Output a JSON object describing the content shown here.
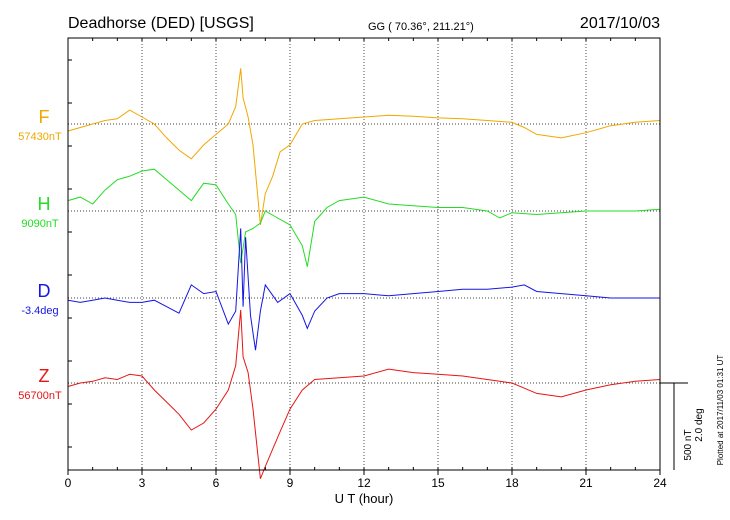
{
  "header": {
    "station": "Deadhorse (DED)  [USGS]",
    "coords": "GG ( 70.36°, 211.21°)",
    "date": "2017/10/03"
  },
  "side": {
    "plotted": "Plotted at 2017/11/03 01:31  UT",
    "scale_nt": "500 nT",
    "scale_deg": "2.0 deg"
  },
  "chart_data": {
    "type": "line",
    "xlabel": "U T (hour)",
    "xlim": [
      0,
      24
    ],
    "xticks": [
      "0",
      "3",
      "6",
      "9",
      "12",
      "15",
      "18",
      "21",
      "24"
    ],
    "grid": true,
    "series": [
      {
        "name": "F",
        "baseline_label": "57430nT",
        "color": "#f0a800",
        "units": "nT",
        "x": [
          0,
          0.5,
          1,
          1.5,
          2,
          2.5,
          3,
          3.5,
          4,
          4.5,
          5,
          5.5,
          6,
          6.5,
          6.8,
          7,
          7.1,
          7.3,
          7.5,
          7.8,
          8,
          8.3,
          8.6,
          9,
          9.5,
          10,
          11,
          12,
          13,
          14,
          15,
          16,
          17,
          18,
          18.5,
          19,
          20,
          21,
          22,
          23,
          24
        ],
        "y": [
          -40,
          -20,
          0,
          20,
          30,
          80,
          40,
          0,
          -80,
          -150,
          -200,
          -120,
          -60,
          0,
          100,
          320,
          150,
          40,
          -120,
          -580,
          -400,
          -300,
          -160,
          -120,
          0,
          20,
          30,
          40,
          50,
          45,
          35,
          30,
          20,
          10,
          -20,
          -60,
          -80,
          -50,
          -10,
          10,
          20
        ]
      },
      {
        "name": "H",
        "baseline_label": "9090nT",
        "color": "#22dd22",
        "units": "nT",
        "x": [
          0,
          0.5,
          1,
          1.5,
          2,
          2.5,
          3,
          3.5,
          4,
          4.5,
          5,
          5.5,
          6,
          6.5,
          6.8,
          7,
          7.2,
          7.5,
          7.8,
          8,
          8.5,
          9,
          9.5,
          9.7,
          10,
          10.5,
          11,
          12,
          13,
          14,
          15,
          16,
          17,
          17.5,
          18,
          19,
          20,
          21,
          22,
          23,
          24
        ],
        "y": [
          60,
          80,
          40,
          120,
          180,
          200,
          230,
          240,
          180,
          120,
          60,
          160,
          150,
          40,
          -20,
          -300,
          -120,
          -100,
          -70,
          0,
          -40,
          -80,
          -200,
          -320,
          -60,
          20,
          60,
          80,
          40,
          30,
          20,
          20,
          0,
          -40,
          -10,
          -20,
          -10,
          0,
          0,
          0,
          10
        ]
      },
      {
        "name": "D",
        "baseline_label": "-3.4deg",
        "color": "#1515e6",
        "units": "deg",
        "x": [
          0,
          0.5,
          1,
          1.5,
          2,
          2.5,
          3,
          3.5,
          4,
          4.5,
          5,
          5.5,
          6,
          6.5,
          6.8,
          7,
          7.1,
          7.2,
          7.4,
          7.6,
          7.8,
          8,
          8.5,
          9,
          9.5,
          9.7,
          10,
          10.5,
          11,
          12,
          13,
          14,
          15,
          16,
          17,
          18,
          18.5,
          19,
          20,
          21,
          22,
          23,
          24
        ],
        "y": [
          -0.05,
          -0.1,
          -0.05,
          0.0,
          -0.05,
          -0.1,
          -0.1,
          -0.05,
          -0.2,
          -0.35,
          0.3,
          0.1,
          0.15,
          -0.6,
          -0.3,
          1.6,
          -0.2,
          1.4,
          -0.4,
          -1.2,
          -0.3,
          0.3,
          -0.1,
          0.1,
          -0.4,
          -0.7,
          -0.3,
          0.0,
          0.1,
          0.1,
          0.05,
          0.1,
          0.15,
          0.2,
          0.2,
          0.25,
          0.3,
          0.15,
          0.1,
          0.05,
          0.0,
          0.0,
          0.0
        ]
      },
      {
        "name": "Z",
        "baseline_label": "56700nT",
        "color": "#e61515",
        "units": "nT",
        "x": [
          0,
          0.5,
          1,
          1.5,
          2,
          2.5,
          3,
          3.5,
          4,
          4.5,
          5,
          5.5,
          6,
          6.5,
          6.8,
          7,
          7.1,
          7.3,
          7.5,
          7.8,
          8,
          8.3,
          8.6,
          9,
          9.5,
          10,
          11,
          12,
          13,
          14,
          15,
          16,
          17,
          18,
          18.5,
          19,
          20,
          21,
          22,
          23,
          24
        ],
        "y": [
          -20,
          0,
          10,
          30,
          20,
          50,
          40,
          -40,
          -110,
          -180,
          -270,
          -230,
          -150,
          -40,
          100,
          420,
          150,
          60,
          -150,
          -550,
          -480,
          -380,
          -280,
          -150,
          -40,
          20,
          30,
          40,
          80,
          60,
          50,
          40,
          20,
          0,
          -30,
          -60,
          -80,
          -40,
          -10,
          10,
          20
        ]
      }
    ]
  }
}
